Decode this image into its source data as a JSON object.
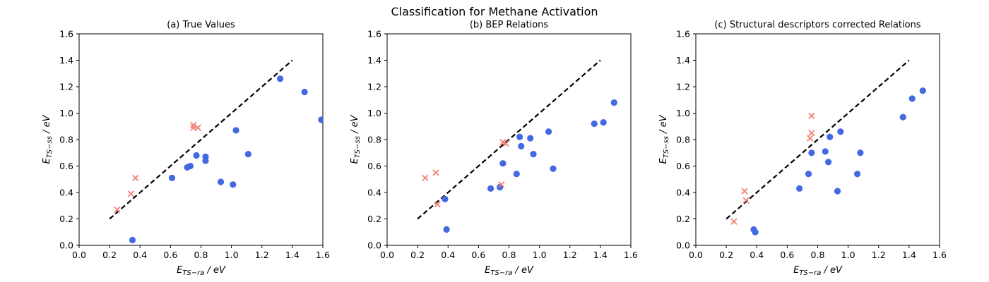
{
  "figure": {
    "title": "Classification for Methane Activation"
  },
  "chart_data": [
    {
      "type": "scatter",
      "title": "(a) True Values",
      "xlabel": "E_{TS-ra} / eV",
      "ylabel": "E_{TS-ss} / eV",
      "xlim": [
        0.0,
        1.6
      ],
      "ylim": [
        0.0,
        1.6
      ],
      "xticks": [
        "0.0",
        "0.2",
        "0.4",
        "0.6",
        "0.8",
        "1.0",
        "1.2",
        "1.4",
        "1.6"
      ],
      "yticks": [
        "0.0",
        "0.2",
        "0.4",
        "0.6",
        "0.8",
        "1.0",
        "1.2",
        "1.4",
        "1.6"
      ],
      "grid": false,
      "reference_line": {
        "x": [
          0.2,
          1.4
        ],
        "y": [
          0.2,
          1.4
        ],
        "style": "dashed",
        "color": "#000000"
      },
      "series": [
        {
          "marker": "circle",
          "color": "#4169e1",
          "points": [
            [
              0.35,
              0.04
            ],
            [
              0.61,
              0.51
            ],
            [
              0.71,
              0.59
            ],
            [
              0.73,
              0.6
            ],
            [
              0.77,
              0.68
            ],
            [
              0.83,
              0.67
            ],
            [
              0.83,
              0.64
            ],
            [
              0.93,
              0.48
            ],
            [
              1.01,
              0.46
            ],
            [
              1.03,
              0.87
            ],
            [
              1.11,
              0.69
            ],
            [
              1.32,
              1.26
            ],
            [
              1.48,
              1.16
            ],
            [
              1.59,
              0.95
            ]
          ]
        },
        {
          "marker": "x",
          "color": "#f08070",
          "points": [
            [
              0.25,
              0.27
            ],
            [
              0.34,
              0.39
            ],
            [
              0.37,
              0.51
            ],
            [
              0.75,
              0.91
            ],
            [
              0.75,
              0.89
            ],
            [
              0.78,
              0.89
            ]
          ]
        }
      ]
    },
    {
      "type": "scatter",
      "title": "(b) BEP Relations",
      "xlabel": "E_{TS-ra} / eV",
      "ylabel": "E_{TS-ss} / eV",
      "xlim": [
        0.0,
        1.6
      ],
      "ylim": [
        0.0,
        1.6
      ],
      "xticks": [
        "0.0",
        "0.2",
        "0.4",
        "0.6",
        "0.8",
        "1.0",
        "1.2",
        "1.4",
        "1.6"
      ],
      "yticks": [
        "0.0",
        "0.2",
        "0.4",
        "0.6",
        "0.8",
        "1.0",
        "1.2",
        "1.4",
        "1.6"
      ],
      "grid": false,
      "reference_line": {
        "x": [
          0.2,
          1.4
        ],
        "y": [
          0.2,
          1.4
        ],
        "style": "dashed",
        "color": "#000000"
      },
      "series": [
        {
          "marker": "circle",
          "color": "#4169e1",
          "points": [
            [
              0.38,
              0.35
            ],
            [
              0.39,
              0.12
            ],
            [
              0.68,
              0.43
            ],
            [
              0.74,
              0.44
            ],
            [
              0.76,
              0.62
            ],
            [
              0.85,
              0.54
            ],
            [
              0.87,
              0.82
            ],
            [
              0.88,
              0.75
            ],
            [
              0.94,
              0.81
            ],
            [
              0.96,
              0.69
            ],
            [
              1.06,
              0.86
            ],
            [
              1.09,
              0.58
            ],
            [
              1.36,
              0.92
            ],
            [
              1.42,
              0.93
            ],
            [
              1.49,
              1.08
            ]
          ]
        },
        {
          "marker": "x",
          "color": "#f08070",
          "points": [
            [
              0.25,
              0.51
            ],
            [
              0.32,
              0.55
            ],
            [
              0.33,
              0.31
            ],
            [
              0.75,
              0.46
            ],
            [
              0.76,
              0.78
            ],
            [
              0.78,
              0.77
            ]
          ]
        }
      ]
    },
    {
      "type": "scatter",
      "title": "(c) Structural descriptors corrected Relations",
      "xlabel": "E_{TS-ra} / eV",
      "ylabel": "E_{TS-ss} / eV",
      "xlim": [
        0.0,
        1.6
      ],
      "ylim": [
        0.0,
        1.6
      ],
      "xticks": [
        "0.0",
        "0.2",
        "0.4",
        "0.6",
        "0.8",
        "1.0",
        "1.2",
        "1.4",
        "1.6"
      ],
      "yticks": [
        "0.0",
        "0.2",
        "0.4",
        "0.6",
        "0.8",
        "1.0",
        "1.2",
        "1.4",
        "1.6"
      ],
      "grid": false,
      "reference_line": {
        "x": [
          0.2,
          1.4
        ],
        "y": [
          0.2,
          1.4
        ],
        "style": "dashed",
        "color": "#000000"
      },
      "series": [
        {
          "marker": "circle",
          "color": "#4169e1",
          "points": [
            [
              0.38,
              0.12
            ],
            [
              0.39,
              0.1
            ],
            [
              0.68,
              0.43
            ],
            [
              0.74,
              0.54
            ],
            [
              0.76,
              0.7
            ],
            [
              0.85,
              0.71
            ],
            [
              0.87,
              0.63
            ],
            [
              0.88,
              0.82
            ],
            [
              0.93,
              0.41
            ],
            [
              0.95,
              0.86
            ],
            [
              1.06,
              0.54
            ],
            [
              1.08,
              0.7
            ],
            [
              1.36,
              0.97
            ],
            [
              1.42,
              1.11
            ],
            [
              1.49,
              1.17
            ]
          ]
        },
        {
          "marker": "x",
          "color": "#f08070",
          "points": [
            [
              0.25,
              0.18
            ],
            [
              0.32,
              0.41
            ],
            [
              0.33,
              0.34
            ],
            [
              0.75,
              0.81
            ],
            [
              0.76,
              0.85
            ],
            [
              0.76,
              0.98
            ]
          ]
        }
      ]
    }
  ]
}
